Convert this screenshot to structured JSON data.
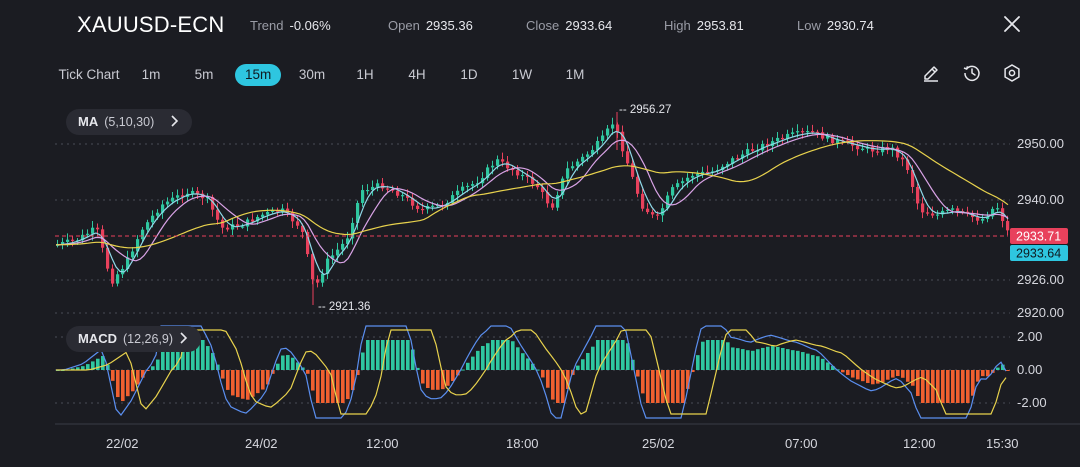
{
  "header": {
    "symbol": "XAUUSD-ECN",
    "stats": [
      {
        "key": "Trend",
        "value": "-0.06%"
      },
      {
        "key": "Open",
        "value": "2935.36"
      },
      {
        "key": "Close",
        "value": "2933.64"
      },
      {
        "key": "High",
        "value": "2953.81"
      },
      {
        "key": "Low",
        "value": "2930.74"
      }
    ]
  },
  "toolbar": {
    "chart_type": "Tick Chart",
    "timeframes": [
      "1m",
      "5m",
      "15m",
      "30m",
      "1H",
      "4H",
      "1D",
      "1W",
      "1M"
    ],
    "active_timeframe": "15m",
    "icons": [
      "pencil-icon",
      "clock-icon",
      "settings-icon"
    ]
  },
  "indicators": {
    "ma": {
      "label": "MA",
      "params": "(5,10,30)"
    },
    "macd": {
      "label": "MACD",
      "params": "(12,26,9)"
    }
  },
  "price_axis": {
    "ticks": [
      "2950.00",
      "2940.00",
      "2926.00",
      "2920.00"
    ],
    "last_price_tag": "2933.71",
    "close_tag": "2933.64",
    "high_marker": "2956.27",
    "low_marker": "2921.36"
  },
  "macd_axis": {
    "ticks": [
      "2.00",
      "0.00",
      "-2.00"
    ]
  },
  "time_axis": {
    "labels": [
      "22/02",
      "24/02",
      "12:00",
      "18:00",
      "25/02",
      "07:00",
      "12:00",
      "15:30"
    ]
  },
  "colors": {
    "background": "#1b1c22",
    "bull": "#2fc7a0",
    "bear": "#e8415c",
    "macd_neg": "#f06030",
    "ma5": "#8fd9e8",
    "ma10": "#d9a3e6",
    "ma30": "#e8d24d",
    "accent": "#2ec6e0"
  }
}
